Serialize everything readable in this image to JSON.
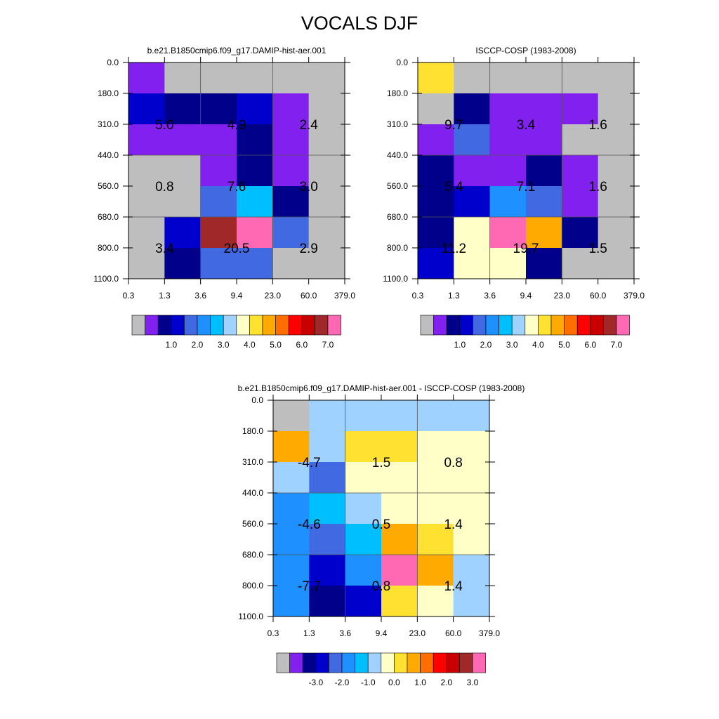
{
  "title": "VOCALS DJF",
  "y_ticks": [
    "0.0",
    "180.0",
    "310.0",
    "440.0",
    "560.0",
    "680.0",
    "800.0",
    "1100.0"
  ],
  "x_ticks": [
    "0.3",
    "1.3",
    "3.6",
    "9.4",
    "23.0",
    "60.0",
    "379.0"
  ],
  "abs_palette": [
    "#bebebe",
    "#8220f0",
    "#00008b",
    "#0000cd",
    "#4169e1",
    "#1e90ff",
    "#00bfff",
    "#a0d2ff",
    "#ffffc8",
    "#ffe132",
    "#ffaa00",
    "#ff6e00",
    "#ff0000",
    "#c80000",
    "#a02828",
    "#ff69b4"
  ],
  "abs_labelbar": [
    "1.0",
    "2.0",
    "3.0",
    "4.0",
    "5.0",
    "6.0",
    "7.0"
  ],
  "diff_palette": [
    "#bebebe",
    "#8220f0",
    "#00008b",
    "#0000cd",
    "#4169e1",
    "#1e90ff",
    "#00bfff",
    "#a0d2ff",
    "#ffffc8",
    "#ffe132",
    "#ffaa00",
    "#ff6e00",
    "#ff0000",
    "#c80000",
    "#a02828",
    "#ff69b4"
  ],
  "diff_labelbar": [
    "-3.0",
    "-2.0",
    "-1.0",
    "0.0",
    "1.0",
    "2.0",
    "3.0"
  ],
  "chart_data": [
    {
      "type": "heatmap",
      "title": "b.e21.B1850cmip6.f09_g17.DAMIP-hist-aer.001",
      "colors": [
        [
          1,
          0,
          0,
          0,
          0,
          0
        ],
        [
          3,
          2,
          2,
          3,
          1,
          0
        ],
        [
          1,
          1,
          1,
          2,
          1,
          0
        ],
        [
          0,
          0,
          1,
          2,
          1,
          0
        ],
        [
          0,
          0,
          4,
          6,
          2,
          0
        ],
        [
          0,
          3,
          14,
          15,
          4,
          0
        ],
        [
          0,
          2,
          4,
          4,
          0,
          0
        ]
      ],
      "annotations": [
        [
          "5.0",
          "4.9",
          "2.4"
        ],
        [
          "0.8",
          "7.6",
          "3.0"
        ],
        [
          "3.4",
          "20.5",
          "2.9"
        ]
      ]
    },
    {
      "type": "heatmap",
      "title": "ISCCP-COSP (1983-2008)",
      "colors": [
        [
          9,
          0,
          0,
          0,
          0,
          0
        ],
        [
          0,
          2,
          1,
          1,
          1,
          0
        ],
        [
          1,
          4,
          1,
          1,
          0,
          0
        ],
        [
          2,
          1,
          1,
          2,
          1,
          0
        ],
        [
          2,
          3,
          5,
          4,
          1,
          0
        ],
        [
          2,
          8,
          15,
          10,
          2,
          0
        ],
        [
          3,
          8,
          8,
          2,
          0,
          0
        ]
      ],
      "annotations": [
        [
          "9.7",
          "3.4",
          "1.6"
        ],
        [
          "5.4",
          "7.1",
          "1.6"
        ],
        [
          "11.2",
          "19.7",
          "1.5"
        ]
      ]
    },
    {
      "type": "heatmap",
      "title": "b.e21.B1850cmip6.f09_g17.DAMIP-hist-aer.001 - ISCCP-COSP (1983-2008)",
      "colors": [
        [
          0,
          7,
          7,
          7,
          7,
          7
        ],
        [
          10,
          7,
          9,
          9,
          8,
          8
        ],
        [
          7,
          4,
          8,
          8,
          8,
          8
        ],
        [
          5,
          6,
          7,
          8,
          8,
          8
        ],
        [
          5,
          4,
          6,
          10,
          9,
          8
        ],
        [
          5,
          3,
          5,
          15,
          10,
          7
        ],
        [
          5,
          2,
          3,
          9,
          8,
          7
        ]
      ],
      "annotations": [
        [
          "-4.7",
          "1.5",
          "0.8"
        ],
        [
          "-4.6",
          "0.5",
          "1.4"
        ],
        [
          "-7.7",
          "0.8",
          "1.4"
        ]
      ]
    }
  ]
}
